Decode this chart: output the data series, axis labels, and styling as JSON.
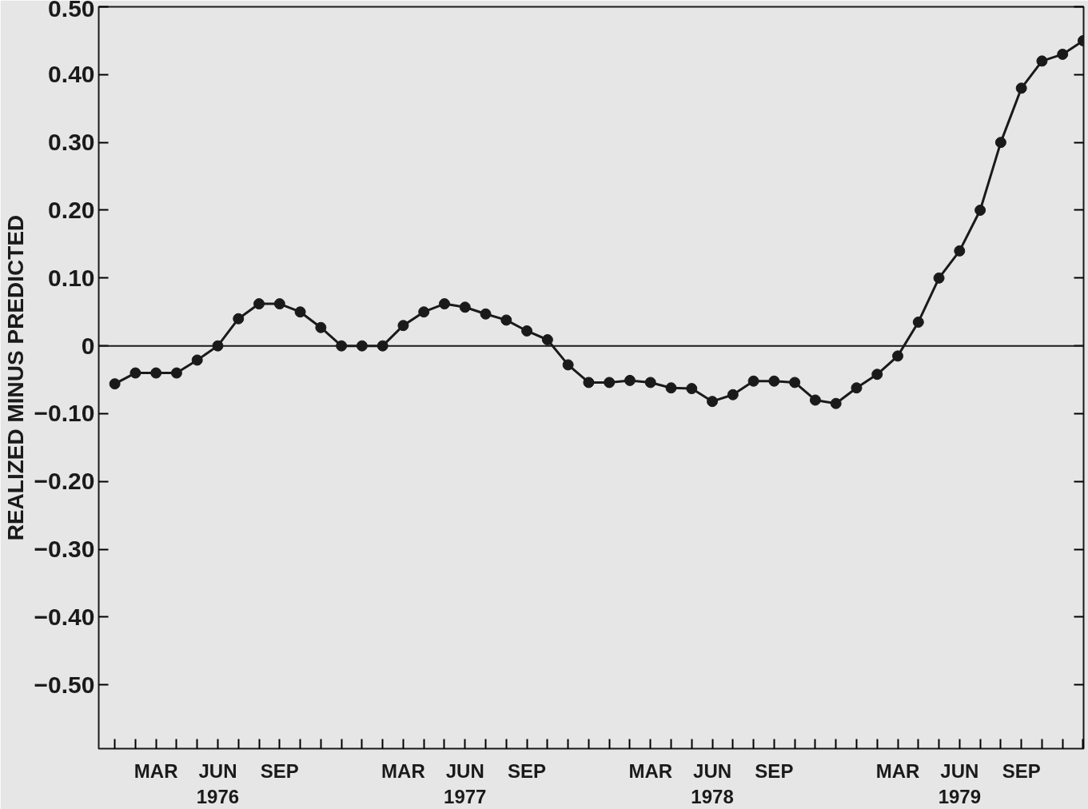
{
  "chart_data": {
    "type": "line",
    "ylabel": "REALIZED MINUS PREDICTED",
    "categories": [
      null,
      null,
      "MAR",
      null,
      null,
      "JUN\n1976",
      null,
      null,
      "SEP",
      null,
      null,
      null,
      null,
      null,
      "MAR",
      null,
      null,
      "JUN\n1977",
      null,
      null,
      "SEP",
      null,
      null,
      null,
      null,
      null,
      "MAR",
      null,
      null,
      "JUN\n1978",
      null,
      null,
      "SEP",
      null,
      null,
      null,
      null,
      null,
      "MAR",
      null,
      null,
      "JUN\n1979",
      null,
      null,
      "SEP",
      null,
      null,
      null
    ],
    "series": [
      {
        "color": "#1a1a1a",
        "values": [
          -0.056,
          -0.04,
          -0.04,
          -0.04,
          -0.021,
          0,
          0.04,
          0.062,
          0.062,
          0.05,
          0.027,
          0,
          0,
          0,
          0.03,
          0.05,
          0.062,
          0.057,
          0.047,
          0.038,
          0.022,
          0.009,
          -0.028,
          -0.054,
          -0.054,
          -0.051,
          -0.054,
          -0.062,
          -0.063,
          -0.082,
          -0.072,
          -0.052,
          -0.052,
          -0.054,
          -0.08,
          -0.085,
          -0.062,
          -0.042,
          -0.015,
          0.035,
          0.1,
          0.14,
          0.2,
          0.3,
          0.38,
          0.42,
          0.43,
          0.45
        ]
      }
    ],
    "ylim": [
      -0.594,
      0.5
    ],
    "yticks": [
      {
        "value": 0.5,
        "label": "0.50"
      },
      {
        "value": 0.4,
        "label": "0.40"
      },
      {
        "value": 0.3,
        "label": "0.30"
      },
      {
        "value": 0.2,
        "label": "0.20"
      },
      {
        "value": 0.1,
        "label": "0.10"
      },
      0,
      {
        "value": -0.1,
        "label": "−0.10"
      },
      {
        "value": -0.2,
        "label": "−0.20"
      },
      {
        "value": -0.3,
        "label": "−0.30"
      },
      {
        "value": -0.4,
        "label": "−0.40"
      },
      {
        "value": -0.5,
        "label": "−0.50"
      }
    ],
    "ref_lines": [
      {
        "axis": "y",
        "value": 0,
        "color": "#1a1a1a"
      }
    ],
    "marker": "circle",
    "line_style": "solid",
    "grid": false
  }
}
